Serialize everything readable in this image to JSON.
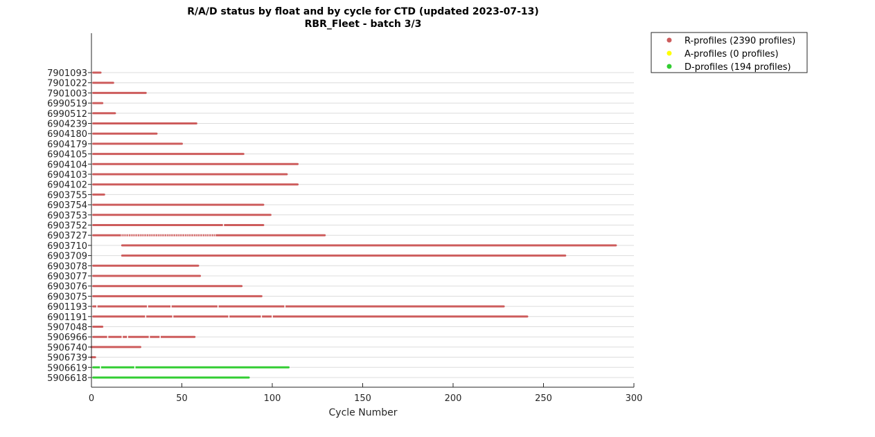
{
  "chart_data": {
    "type": "scatter",
    "title": "R/A/D status by float and by cycle for CTD (updated 2023-07-13)",
    "subtitle": "RBR_Fleet - batch 3/3",
    "xlabel": "Cycle Number",
    "ylabel": "",
    "xlim": [
      0,
      300
    ],
    "xticks": [
      "0",
      "50",
      "100",
      "150",
      "200",
      "250",
      "300"
    ],
    "grid": "horizontal",
    "legend_position": "outside-top-right",
    "legend": [
      {
        "key": "R",
        "label": "R-profiles (2390 profiles)",
        "color": "#cd5c5c"
      },
      {
        "key": "A",
        "label": "A-profiles (0 profiles)",
        "color": "#ffff00"
      },
      {
        "key": "D",
        "label": "D-profiles (194 profiles)",
        "color": "#32cd32"
      }
    ],
    "floats": [
      {
        "id": "7901093",
        "status": "R",
        "start": 1,
        "end": 5,
        "gaps": []
      },
      {
        "id": "7901022",
        "status": "R",
        "start": 1,
        "end": 12,
        "gaps": []
      },
      {
        "id": "7901003",
        "status": "R",
        "start": 1,
        "end": 30,
        "gaps": []
      },
      {
        "id": "6990519",
        "status": "R",
        "start": 1,
        "end": 6,
        "gaps": []
      },
      {
        "id": "6990512",
        "status": "R",
        "start": 1,
        "end": 13,
        "gaps": []
      },
      {
        "id": "6904239",
        "status": "R",
        "start": 1,
        "end": 58,
        "gaps": []
      },
      {
        "id": "6904180",
        "status": "R",
        "start": 1,
        "end": 36,
        "gaps": []
      },
      {
        "id": "6904179",
        "status": "R",
        "start": 1,
        "end": 50,
        "gaps": []
      },
      {
        "id": "6904105",
        "status": "R",
        "start": 1,
        "end": 84,
        "gaps": []
      },
      {
        "id": "6904104",
        "status": "R",
        "start": 1,
        "end": 114,
        "gaps": []
      },
      {
        "id": "6904103",
        "status": "R",
        "start": 1,
        "end": 108,
        "gaps": []
      },
      {
        "id": "6904102",
        "status": "R",
        "start": 1,
        "end": 114,
        "gaps": []
      },
      {
        "id": "6903755",
        "status": "R",
        "start": 1,
        "end": 7,
        "gaps": []
      },
      {
        "id": "6903754",
        "status": "R",
        "start": 1,
        "end": 95,
        "gaps": []
      },
      {
        "id": "6903753",
        "status": "R",
        "start": 1,
        "end": 99,
        "gaps": []
      },
      {
        "id": "6903752",
        "status": "R",
        "start": 1,
        "end": 95,
        "gaps": [
          73
        ]
      },
      {
        "id": "6903727",
        "status": "R",
        "start": 1,
        "end": 129,
        "gaps": [],
        "dotted": [
          16,
          68
        ]
      },
      {
        "id": "6903710",
        "status": "R",
        "start": 17,
        "end": 290,
        "gaps": []
      },
      {
        "id": "6903709",
        "status": "R",
        "start": 17,
        "end": 262,
        "gaps": []
      },
      {
        "id": "6903078",
        "status": "R",
        "start": 1,
        "end": 59,
        "gaps": []
      },
      {
        "id": "6903077",
        "status": "R",
        "start": 1,
        "end": 60,
        "gaps": []
      },
      {
        "id": "6903076",
        "status": "R",
        "start": 1,
        "end": 83,
        "gaps": []
      },
      {
        "id": "6903075",
        "status": "R",
        "start": 1,
        "end": 94,
        "gaps": []
      },
      {
        "id": "6901193",
        "status": "R",
        "start": 1,
        "end": 228,
        "gaps": [
          3,
          31,
          44,
          70,
          107
        ]
      },
      {
        "id": "6901191",
        "status": "R",
        "start": 1,
        "end": 241,
        "gaps": [
          30,
          45,
          76,
          94,
          100
        ]
      },
      {
        "id": "5907048",
        "status": "R",
        "start": 1,
        "end": 6,
        "gaps": []
      },
      {
        "id": "5906966",
        "status": "R",
        "start": 1,
        "end": 57,
        "gaps": [
          9,
          17,
          20,
          32,
          38
        ]
      },
      {
        "id": "5906740",
        "status": "R",
        "start": 0,
        "end": 27,
        "gaps": []
      },
      {
        "id": "5906739",
        "status": "R",
        "start": 0,
        "end": 2,
        "gaps": []
      },
      {
        "id": "5906619",
        "status": "D",
        "start": 1,
        "end": 109,
        "gaps": [
          5,
          24
        ]
      },
      {
        "id": "5906618",
        "status": "D",
        "start": 1,
        "end": 87,
        "gaps": []
      }
    ]
  }
}
